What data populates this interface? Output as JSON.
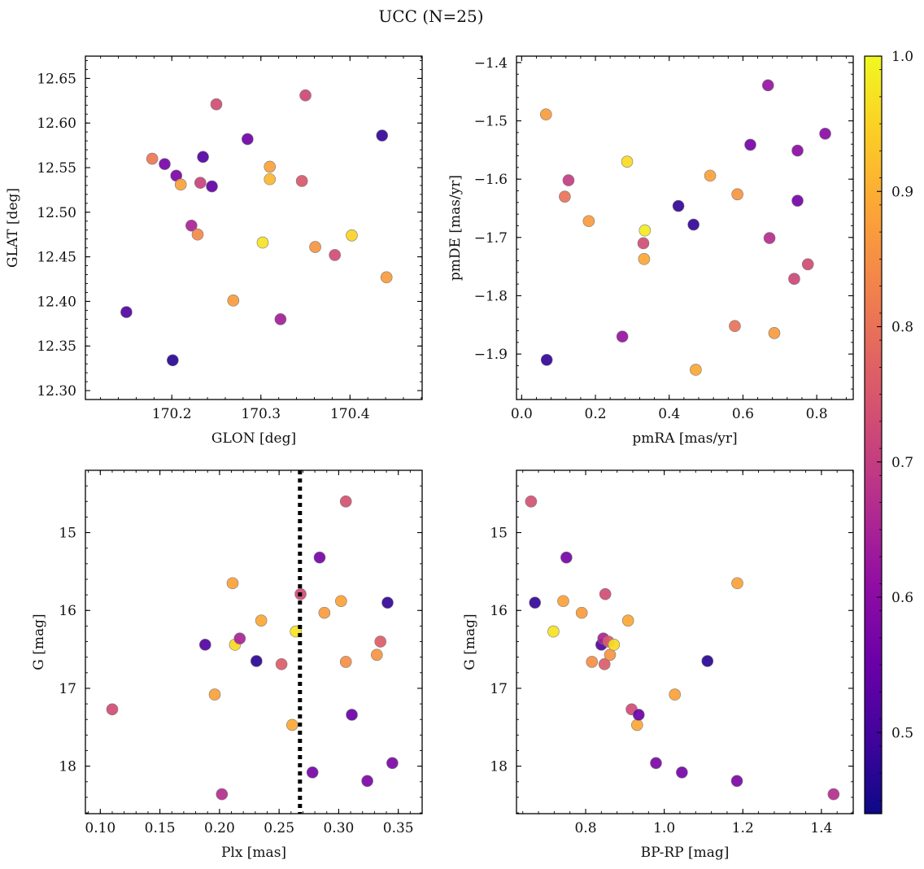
{
  "figure": {
    "title": "UCC (N=25)",
    "colorbar": {
      "min": 0.44,
      "max": 1.0,
      "ticks": [
        0.5,
        0.6,
        0.7,
        0.8,
        0.9,
        1.0
      ],
      "tick_labels": [
        "0.5",
        "0.6",
        "0.7",
        "0.8",
        "0.9",
        "1.0"
      ],
      "colormap": "plasma"
    }
  },
  "chart_data": [
    {
      "type": "scatter",
      "xlabel": "GLON [deg]",
      "ylabel": "GLAT [deg]",
      "xlim": [
        170.103,
        170.481
      ],
      "ylim": [
        12.29,
        12.675
      ],
      "xticks": [
        170.2,
        170.3,
        170.4
      ],
      "xtick_labels": [
        "170.2",
        "170.3",
        "170.4"
      ],
      "yticks": [
        12.3,
        12.35,
        12.4,
        12.45,
        12.5,
        12.55,
        12.6,
        12.65
      ],
      "ytick_labels": [
        "12.30",
        "12.35",
        "12.40",
        "12.45",
        "12.50",
        "12.55",
        "12.60",
        "12.65"
      ],
      "points": [
        {
          "x": 170.149,
          "y": 12.388,
          "c": 0.52
        },
        {
          "x": 170.178,
          "y": 12.56,
          "c": 0.81
        },
        {
          "x": 170.192,
          "y": 12.554,
          "c": 0.57
        },
        {
          "x": 170.201,
          "y": 12.334,
          "c": 0.47
        },
        {
          "x": 170.205,
          "y": 12.541,
          "c": 0.58
        },
        {
          "x": 170.21,
          "y": 12.531,
          "c": 0.88
        },
        {
          "x": 170.222,
          "y": 12.485,
          "c": 0.65
        },
        {
          "x": 170.229,
          "y": 12.475,
          "c": 0.84
        },
        {
          "x": 170.232,
          "y": 12.533,
          "c": 0.71
        },
        {
          "x": 170.235,
          "y": 12.562,
          "c": 0.52
        },
        {
          "x": 170.245,
          "y": 12.529,
          "c": 0.54
        },
        {
          "x": 170.25,
          "y": 12.621,
          "c": 0.73
        },
        {
          "x": 170.269,
          "y": 12.401,
          "c": 0.87
        },
        {
          "x": 170.285,
          "y": 12.582,
          "c": 0.56
        },
        {
          "x": 170.302,
          "y": 12.466,
          "c": 0.97
        },
        {
          "x": 170.31,
          "y": 12.551,
          "c": 0.88
        },
        {
          "x": 170.31,
          "y": 12.537,
          "c": 0.91
        },
        {
          "x": 170.322,
          "y": 12.38,
          "c": 0.64
        },
        {
          "x": 170.346,
          "y": 12.535,
          "c": 0.75
        },
        {
          "x": 170.35,
          "y": 12.631,
          "c": 0.72
        },
        {
          "x": 170.361,
          "y": 12.461,
          "c": 0.86
        },
        {
          "x": 170.383,
          "y": 12.452,
          "c": 0.73
        },
        {
          "x": 170.402,
          "y": 12.474,
          "c": 0.95
        },
        {
          "x": 170.436,
          "y": 12.586,
          "c": 0.48
        },
        {
          "x": 170.441,
          "y": 12.427,
          "c": 0.87
        }
      ]
    },
    {
      "type": "scatter",
      "xlabel": "pmRA [mas/yr]",
      "ylabel": "pmDE [mas/yr]",
      "xlim": [
        -0.014,
        0.899
      ],
      "ylim": [
        -1.978,
        -1.389
      ],
      "xticks": [
        0.0,
        0.2,
        0.4,
        0.6,
        0.8
      ],
      "xtick_labels": [
        "0.0",
        "0.2",
        "0.4",
        "0.6",
        "0.8"
      ],
      "yticks": [
        -1.9,
        -1.8,
        -1.7,
        -1.6,
        -1.5,
        -1.4
      ],
      "ytick_labels": [
        "−1.9",
        "−1.8",
        "−1.7",
        "−1.6",
        "−1.5",
        "−1.4"
      ],
      "points": [
        {
          "x": 0.066,
          "y": -1.489,
          "c": 0.87
        },
        {
          "x": 0.068,
          "y": -1.91,
          "c": 0.48
        },
        {
          "x": 0.117,
          "y": -1.63,
          "c": 0.8
        },
        {
          "x": 0.127,
          "y": -1.602,
          "c": 0.7
        },
        {
          "x": 0.182,
          "y": -1.672,
          "c": 0.87
        },
        {
          "x": 0.273,
          "y": -1.87,
          "c": 0.62
        },
        {
          "x": 0.286,
          "y": -1.57,
          "c": 0.96
        },
        {
          "x": 0.33,
          "y": -1.71,
          "c": 0.73
        },
        {
          "x": 0.332,
          "y": -1.737,
          "c": 0.89
        },
        {
          "x": 0.334,
          "y": -1.688,
          "c": 0.98
        },
        {
          "x": 0.425,
          "y": -1.646,
          "c": 0.48
        },
        {
          "x": 0.466,
          "y": -1.678,
          "c": 0.48
        },
        {
          "x": 0.472,
          "y": -1.927,
          "c": 0.89
        },
        {
          "x": 0.511,
          "y": -1.594,
          "c": 0.88
        },
        {
          "x": 0.578,
          "y": -1.852,
          "c": 0.8
        },
        {
          "x": 0.585,
          "y": -1.626,
          "c": 0.86
        },
        {
          "x": 0.62,
          "y": -1.541,
          "c": 0.57
        },
        {
          "x": 0.668,
          "y": -1.439,
          "c": 0.62
        },
        {
          "x": 0.672,
          "y": -1.701,
          "c": 0.67
        },
        {
          "x": 0.685,
          "y": -1.864,
          "c": 0.87
        },
        {
          "x": 0.739,
          "y": -1.771,
          "c": 0.72
        },
        {
          "x": 0.748,
          "y": -1.551,
          "c": 0.6
        },
        {
          "x": 0.748,
          "y": -1.637,
          "c": 0.57
        },
        {
          "x": 0.776,
          "y": -1.746,
          "c": 0.73
        },
        {
          "x": 0.823,
          "y": -1.522,
          "c": 0.6
        }
      ]
    },
    {
      "type": "scatter",
      "xlabel": "Plx [mas]",
      "ylabel": "G [mag]",
      "xlim": [
        0.0875,
        0.37
      ],
      "ylim": [
        18.61,
        14.2
      ],
      "y_inverted": true,
      "xticks": [
        0.1,
        0.15,
        0.2,
        0.25,
        0.3,
        0.35
      ],
      "xtick_labels": [
        "0.10",
        "0.15",
        "0.20",
        "0.25",
        "0.30",
        "0.35"
      ],
      "yticks": [
        15,
        16,
        17,
        18
      ],
      "ytick_labels": [
        "15",
        "16",
        "17",
        "18"
      ],
      "vline": 0.2675,
      "points": [
        {
          "x": 0.11,
          "y": 17.27,
          "c": 0.73
        },
        {
          "x": 0.188,
          "y": 16.44,
          "c": 0.52
        },
        {
          "x": 0.196,
          "y": 17.08,
          "c": 0.88
        },
        {
          "x": 0.202,
          "y": 18.36,
          "c": 0.67
        },
        {
          "x": 0.211,
          "y": 15.65,
          "c": 0.88
        },
        {
          "x": 0.213,
          "y": 16.44,
          "c": 0.96
        },
        {
          "x": 0.217,
          "y": 16.36,
          "c": 0.65
        },
        {
          "x": 0.231,
          "y": 16.65,
          "c": 0.47
        },
        {
          "x": 0.235,
          "y": 16.13,
          "c": 0.89
        },
        {
          "x": 0.252,
          "y": 16.69,
          "c": 0.76
        },
        {
          "x": 0.261,
          "y": 17.47,
          "c": 0.89
        },
        {
          "x": 0.264,
          "y": 16.27,
          "c": 0.97
        },
        {
          "x": 0.268,
          "y": 15.79,
          "c": 0.73
        },
        {
          "x": 0.278,
          "y": 18.08,
          "c": 0.57
        },
        {
          "x": 0.284,
          "y": 15.32,
          "c": 0.57
        },
        {
          "x": 0.288,
          "y": 16.03,
          "c": 0.87
        },
        {
          "x": 0.302,
          "y": 15.88,
          "c": 0.88
        },
        {
          "x": 0.306,
          "y": 14.6,
          "c": 0.74
        },
        {
          "x": 0.306,
          "y": 16.66,
          "c": 0.85
        },
        {
          "x": 0.311,
          "y": 17.34,
          "c": 0.55
        },
        {
          "x": 0.324,
          "y": 18.19,
          "c": 0.58
        },
        {
          "x": 0.332,
          "y": 16.57,
          "c": 0.86
        },
        {
          "x": 0.335,
          "y": 16.4,
          "c": 0.76
        },
        {
          "x": 0.341,
          "y": 15.9,
          "c": 0.48
        },
        {
          "x": 0.345,
          "y": 17.96,
          "c": 0.58
        }
      ]
    },
    {
      "type": "scatter",
      "xlabel": "BP-RP [mag]",
      "ylabel": "G [mag]",
      "xlim": [
        0.624,
        1.481
      ],
      "ylim": [
        18.61,
        14.2
      ],
      "y_inverted": true,
      "xticks": [
        0.8,
        1.0,
        1.2,
        1.4
      ],
      "xtick_labels": [
        "0.8",
        "1.0",
        "1.2",
        "1.4"
      ],
      "yticks": [
        15,
        16,
        17,
        18
      ],
      "ytick_labels": [
        "15",
        "16",
        "17",
        "18"
      ],
      "points": [
        {
          "x": 0.661,
          "y": 14.6,
          "c": 0.74
        },
        {
          "x": 0.671,
          "y": 15.9,
          "c": 0.48
        },
        {
          "x": 0.718,
          "y": 16.27,
          "c": 0.97
        },
        {
          "x": 0.743,
          "y": 15.88,
          "c": 0.88
        },
        {
          "x": 0.751,
          "y": 15.32,
          "c": 0.57
        },
        {
          "x": 0.79,
          "y": 16.03,
          "c": 0.87
        },
        {
          "x": 0.816,
          "y": 16.66,
          "c": 0.85
        },
        {
          "x": 0.84,
          "y": 16.44,
          "c": 0.52
        },
        {
          "x": 0.845,
          "y": 16.36,
          "c": 0.65
        },
        {
          "x": 0.848,
          "y": 16.69,
          "c": 0.76
        },
        {
          "x": 0.85,
          "y": 15.79,
          "c": 0.73
        },
        {
          "x": 0.858,
          "y": 16.4,
          "c": 0.76
        },
        {
          "x": 0.862,
          "y": 16.57,
          "c": 0.86
        },
        {
          "x": 0.872,
          "y": 16.44,
          "c": 0.96
        },
        {
          "x": 0.908,
          "y": 16.13,
          "c": 0.89
        },
        {
          "x": 0.917,
          "y": 17.27,
          "c": 0.73
        },
        {
          "x": 0.931,
          "y": 17.47,
          "c": 0.89
        },
        {
          "x": 0.935,
          "y": 17.34,
          "c": 0.55
        },
        {
          "x": 0.979,
          "y": 17.96,
          "c": 0.58
        },
        {
          "x": 1.027,
          "y": 17.08,
          "c": 0.88
        },
        {
          "x": 1.045,
          "y": 18.08,
          "c": 0.57
        },
        {
          "x": 1.11,
          "y": 16.65,
          "c": 0.47
        },
        {
          "x": 1.185,
          "y": 18.19,
          "c": 0.58
        },
        {
          "x": 1.186,
          "y": 15.65,
          "c": 0.88
        },
        {
          "x": 1.431,
          "y": 18.36,
          "c": 0.67
        }
      ]
    }
  ]
}
